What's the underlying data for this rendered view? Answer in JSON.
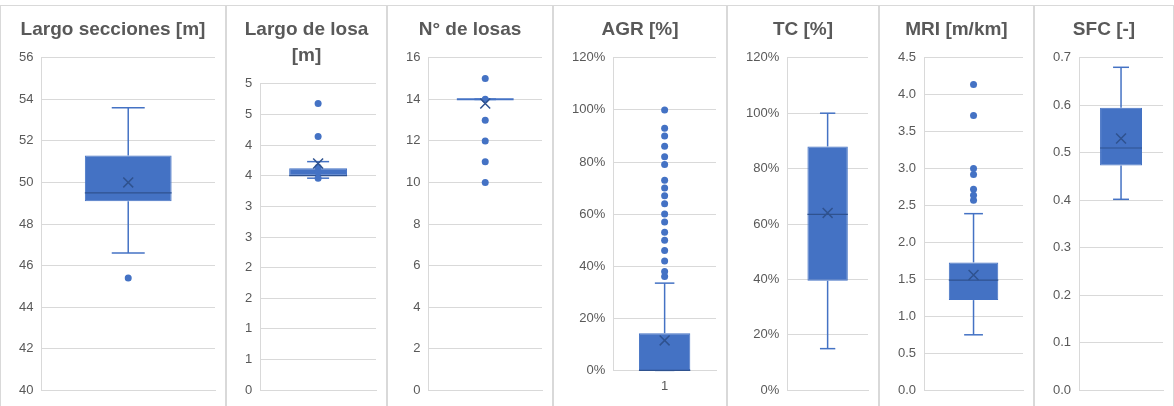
{
  "chart_data": [
    {
      "type": "box",
      "title": "Largo secciones [m]",
      "categories": [
        null
      ],
      "color": "#4472c4",
      "boxes": [
        {
          "low": 46.6,
          "q1": 49.1,
          "median": 49.5,
          "q3": 51.3,
          "high": 53.6,
          "mean": 50.0,
          "outliers": [
            45.4
          ]
        }
      ],
      "ylim": [
        40,
        56
      ],
      "yticks": [
        40,
        42,
        44,
        46,
        48,
        50,
        52,
        54,
        56
      ],
      "grid": "y"
    },
    {
      "type": "box",
      "title": "Largo de losa [m]",
      "categories": [
        null
      ],
      "color": "#4472c4",
      "boxes": [
        {
          "low": 3.46,
          "q1": 3.5,
          "median": 3.5,
          "q3": 3.62,
          "high": 3.73,
          "mean": 3.7,
          "outliers": [
            4.68,
            4.14,
            3.64,
            3.56,
            3.46
          ]
        }
      ],
      "ylim": [
        0,
        5
      ],
      "yticks": [
        0,
        {
          "value": 0.5,
          "label": "1"
        },
        1,
        {
          "value": 1.5,
          "label": "2"
        },
        2,
        {
          "value": 2.5,
          "label": "3"
        },
        3,
        {
          "value": 3.5,
          "label": "4"
        },
        4,
        {
          "value": 4.5,
          "label": "5"
        },
        5
      ],
      "grid": "y"
    },
    {
      "type": "box",
      "title": "N° de losas",
      "categories": [
        null
      ],
      "color": "#4472c4",
      "boxes": [
        {
          "low": 14,
          "q1": 14,
          "median": 14,
          "q3": 14,
          "high": 14,
          "mean": 13.8,
          "outliers": [
            15,
            14,
            13,
            12,
            11,
            10
          ]
        }
      ],
      "ylim": [
        0,
        16
      ],
      "yticks": [
        0,
        2,
        4,
        6,
        8,
        10,
        12,
        14,
        16
      ],
      "grid": "y"
    },
    {
      "type": "box",
      "title": "AGR [%]",
      "categories": [
        "1"
      ],
      "color": "#4472c4",
      "boxes": [
        {
          "low": 0,
          "q1": 0,
          "median": 0,
          "q3": 14.3,
          "high": 33.5,
          "mean": 11.5,
          "outliers": [
            36,
            38,
            42,
            46,
            50,
            53,
            57,
            60,
            64,
            67,
            70,
            73,
            79,
            82,
            86,
            90,
            93,
            100
          ]
        }
      ],
      "ylim": [
        0,
        120
      ],
      "yticks": [
        {
          "value": 0,
          "label": "0%"
        },
        {
          "value": 20,
          "label": "20%"
        },
        {
          "value": 40,
          "label": "40%"
        },
        {
          "value": 60,
          "label": "60%"
        },
        {
          "value": 80,
          "label": "80%"
        },
        {
          "value": 100,
          "label": "100%"
        },
        {
          "value": 120,
          "label": "120%"
        }
      ],
      "grid": "y"
    },
    {
      "type": "box",
      "title": "TC [%]",
      "categories": [
        null
      ],
      "color": "#4472c4",
      "boxes": [
        {
          "low": 15,
          "q1": 39.5,
          "median": 63.5,
          "q3": 88,
          "high": 100,
          "mean": 64
        }
      ],
      "ylim": [
        0,
        120
      ],
      "yticks": [
        {
          "value": 0,
          "label": "0%"
        },
        {
          "value": 20,
          "label": "20%"
        },
        {
          "value": 40,
          "label": "40%"
        },
        {
          "value": 60,
          "label": "60%"
        },
        {
          "value": 80,
          "label": "80%"
        },
        {
          "value": 100,
          "label": "100%"
        },
        {
          "value": 120,
          "label": "120%"
        }
      ],
      "grid": "y"
    },
    {
      "type": "box",
      "title": "MRI [m/km]",
      "categories": [
        null
      ],
      "color": "#4472c4",
      "boxes": [
        {
          "low": 0.75,
          "q1": 1.22,
          "median": 1.49,
          "q3": 1.73,
          "high": 2.39,
          "mean": 1.56,
          "outliers": [
            2.57,
            2.64,
            2.72,
            2.92,
            3.0,
            3.72,
            4.14
          ]
        }
      ],
      "ylim": [
        0,
        4.5
      ],
      "yticks": [
        {
          "value": 0,
          "label": "0.0"
        },
        0.5,
        {
          "value": 1,
          "label": "1.0"
        },
        1.5,
        {
          "value": 2,
          "label": "2.0"
        },
        2.5,
        {
          "value": 3,
          "label": "3.0"
        },
        3.5,
        {
          "value": 4,
          "label": "4.0"
        },
        4.5
      ],
      "grid": "y"
    },
    {
      "type": "box",
      "title": "SFC [-]",
      "categories": [
        null
      ],
      "color": "#4472c4",
      "boxes": [
        {
          "low": 0.402,
          "q1": 0.473,
          "median": 0.51,
          "q3": 0.595,
          "high": 0.68,
          "mean": 0.53
        }
      ],
      "ylim": [
        0,
        0.7
      ],
      "yticks": [
        {
          "value": 0,
          "label": "0.0"
        },
        0.1,
        0.2,
        0.3,
        0.4,
        0.5,
        0.6,
        0.7
      ],
      "grid": "y"
    }
  ]
}
